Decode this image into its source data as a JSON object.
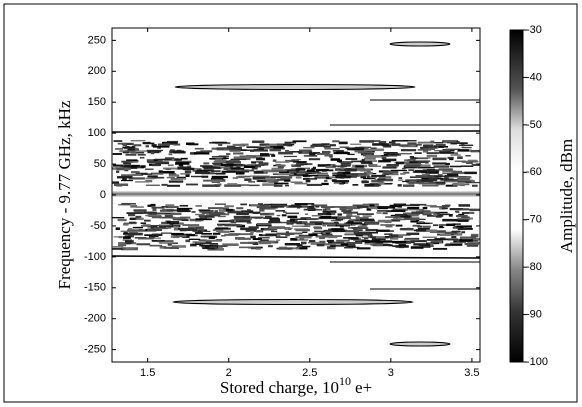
{
  "chart_data": {
    "type": "image",
    "xlabel": {
      "base": "Stored charge, 10",
      "exponent": "10",
      "unit": "e+"
    },
    "ylabel": "Frequency - 9.77 GHz, kHz",
    "xlim": [
      1.28,
      3.55
    ],
    "xticks": [
      1.5,
      2,
      2.5,
      3,
      3.5
    ],
    "ylim": [
      -270,
      270
    ],
    "yticks": [
      -250,
      -200,
      -150,
      -100,
      -50,
      0,
      50,
      100,
      150,
      200,
      250
    ],
    "colorbar": {
      "label": "Amplitude, dBm",
      "clim": [
        -100,
        -30
      ],
      "ticks": [
        -100,
        -90,
        -80,
        -70,
        -60,
        -50,
        -40,
        -30
      ]
    }
  }
}
